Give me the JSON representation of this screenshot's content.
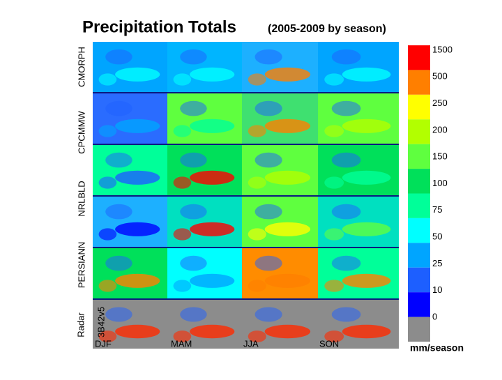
{
  "title": "Precipitation Totals",
  "subtitle": "(2005-2009 by season)",
  "row_labels": [
    "CMORPH",
    "CPCMMW",
    "NRLBLD",
    "PERSIANN",
    "Radar",
    "3B42v5"
  ],
  "column_labels": [
    "DJF",
    "MAM",
    "JJA",
    "SON"
  ],
  "colorbar": {
    "ticks": [
      1500,
      500,
      250,
      200,
      150,
      100,
      75,
      50,
      25,
      10,
      0
    ],
    "colors": [
      "#ff0000",
      "#ff7f00",
      "#ffff00",
      "#b2ff00",
      "#5fff3f",
      "#00e05a",
      "#00ff99",
      "#00ffff",
      "#00a5ff",
      "#1d5fff",
      "#0000ff",
      "#8c8c8c"
    ],
    "unit": "mm/season"
  }
}
